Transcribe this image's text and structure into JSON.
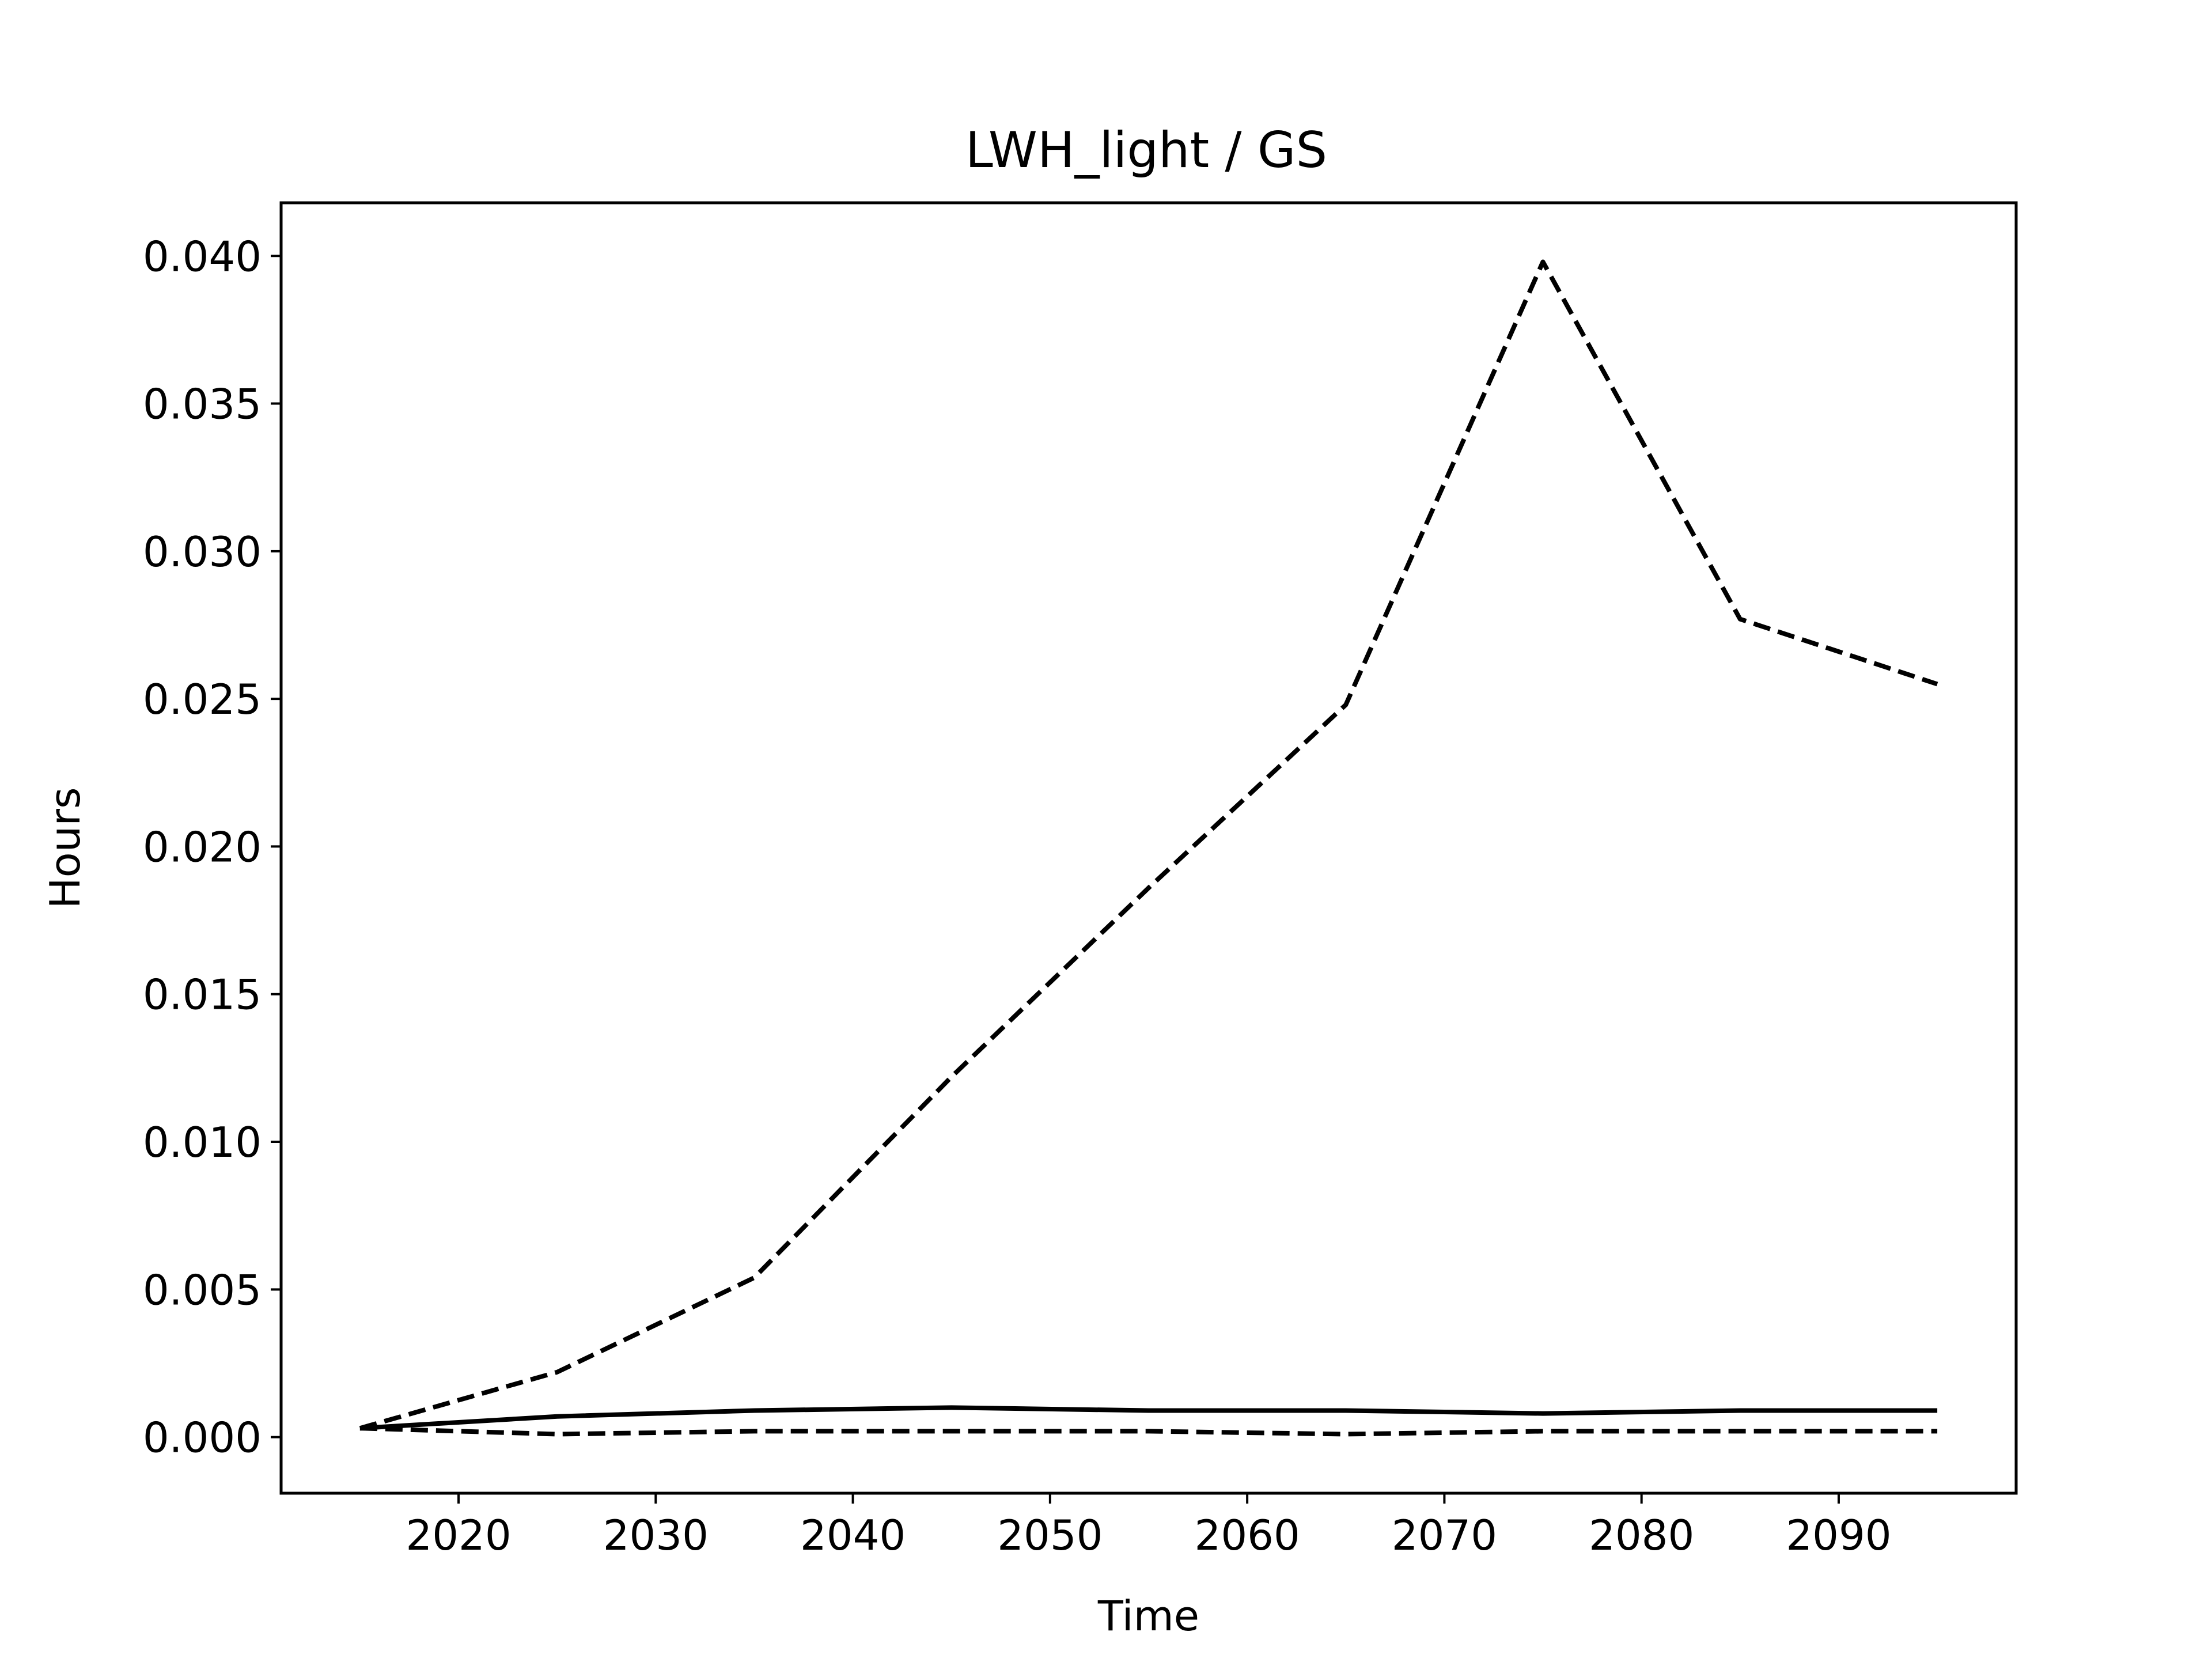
{
  "chart_data": {
    "type": "line",
    "title": "LWH_light / GS",
    "xlabel": "Time",
    "ylabel": "Hours",
    "xlim": [
      2011,
      2099
    ],
    "ylim": [
      -0.0019,
      0.0418
    ],
    "grid": false,
    "legend": "none",
    "x_ticks": [
      2020,
      2030,
      2040,
      2050,
      2060,
      2070,
      2080,
      2090
    ],
    "y_ticks": [
      0.0,
      0.005,
      0.01,
      0.015,
      0.02,
      0.025,
      0.03,
      0.035,
      0.04
    ],
    "x_tick_labels": [
      "2020",
      "2030",
      "2040",
      "2050",
      "2060",
      "2070",
      "2080",
      "2090"
    ],
    "y_tick_labels": [
      "0.000",
      "0.005",
      "0.010",
      "0.015",
      "0.020",
      "0.025",
      "0.030",
      "0.035",
      "0.040"
    ],
    "x": [
      2015,
      2025,
      2035,
      2045,
      2055,
      2065,
      2075,
      2085,
      2095
    ],
    "series": [
      {
        "style": "dashed",
        "color": "#000000",
        "values": [
          0.0003,
          0.0022,
          0.0054,
          0.0122,
          0.0186,
          0.0248,
          0.0398,
          0.0277,
          0.0255
        ]
      },
      {
        "style": "solid",
        "color": "#000000",
        "values": [
          0.0003,
          0.0007,
          0.0009,
          0.001,
          0.0009,
          0.0009,
          0.0008,
          0.0009,
          0.0009
        ]
      },
      {
        "style": "dashed",
        "color": "#000000",
        "values": [
          0.0003,
          0.0001,
          0.0002,
          0.0002,
          0.0002,
          0.0001,
          0.0002,
          0.0002,
          0.0002
        ]
      }
    ]
  }
}
